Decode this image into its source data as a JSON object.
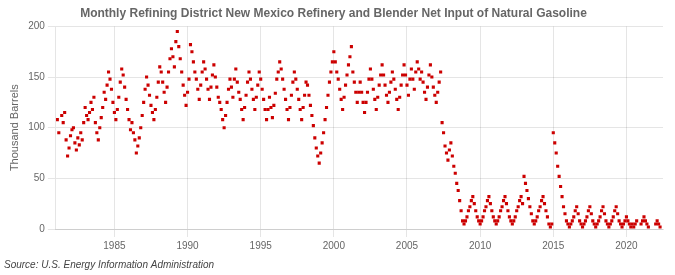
{
  "chart_data": {
    "type": "scatter",
    "title": "Monthly Refining District New Mexico Refinery and Blender Net Input of Natural Gasoline",
    "ylabel": "Thousand Barrels",
    "annotation": "Source: U.S. Energy Information Administration",
    "color": "#cc0000",
    "marker": "square",
    "grid": true,
    "xlim": [
      1981.0,
      2022.5
    ],
    "ylim": [
      0,
      200
    ],
    "xticks": [
      1985,
      1990,
      1995,
      2000,
      2005,
      2010,
      2015,
      2020
    ],
    "yticks": [
      0,
      50,
      100,
      150,
      200
    ],
    "x": [
      1981.1,
      1981.2,
      1981.4,
      1981.5,
      1981.6,
      1981.7,
      1981.8,
      1981.9,
      1982.0,
      1982.1,
      1982.2,
      1982.3,
      1982.4,
      1982.5,
      1982.6,
      1982.7,
      1982.8,
      1982.9,
      1983.0,
      1983.1,
      1983.2,
      1983.3,
      1983.4,
      1983.5,
      1983.6,
      1983.7,
      1983.8,
      1983.9,
      1984.0,
      1984.1,
      1984.2,
      1984.3,
      1984.4,
      1984.5,
      1984.6,
      1984.7,
      1984.8,
      1984.9,
      1985.0,
      1985.1,
      1985.2,
      1985.3,
      1985.4,
      1985.5,
      1985.6,
      1985.7,
      1985.8,
      1985.9,
      1986.0,
      1986.1,
      1986.2,
      1986.3,
      1986.4,
      1986.5,
      1986.6,
      1986.7,
      1986.8,
      1986.9,
      1987.0,
      1987.1,
      1987.2,
      1987.3,
      1987.4,
      1987.5,
      1987.6,
      1987.7,
      1987.8,
      1987.9,
      1988.0,
      1988.1,
      1988.2,
      1988.3,
      1988.4,
      1988.5,
      1988.6,
      1988.7,
      1988.8,
      1988.9,
      1989.0,
      1989.1,
      1989.2,
      1989.3,
      1989.4,
      1989.5,
      1989.6,
      1989.7,
      1989.8,
      1989.9,
      1990.0,
      1990.1,
      1990.2,
      1990.3,
      1990.4,
      1990.5,
      1990.6,
      1990.7,
      1990.8,
      1990.9,
      1991.0,
      1991.1,
      1991.2,
      1991.3,
      1991.4,
      1991.5,
      1991.6,
      1991.7,
      1991.8,
      1991.9,
      1992.0,
      1992.1,
      1992.2,
      1992.3,
      1992.4,
      1992.5,
      1992.6,
      1992.7,
      1992.8,
      1992.9,
      1993.0,
      1993.1,
      1993.2,
      1993.3,
      1993.4,
      1993.5,
      1993.6,
      1993.7,
      1993.8,
      1993.9,
      1994.0,
      1994.1,
      1994.2,
      1994.3,
      1994.4,
      1994.5,
      1994.6,
      1994.7,
      1994.8,
      1994.9,
      1995.0,
      1995.1,
      1995.2,
      1995.3,
      1995.4,
      1995.5,
      1995.6,
      1995.7,
      1995.8,
      1995.9,
      1996.0,
      1996.1,
      1996.2,
      1996.3,
      1996.4,
      1996.5,
      1996.6,
      1996.7,
      1996.8,
      1996.9,
      1997.0,
      1997.1,
      1997.2,
      1997.3,
      1997.4,
      1997.5,
      1997.6,
      1997.7,
      1997.8,
      1997.9,
      1998.0,
      1998.1,
      1998.2,
      1998.3,
      1998.4,
      1998.5,
      1998.6,
      1998.7,
      1998.8,
      1998.9,
      1999.0,
      1999.1,
      1999.2,
      1999.3,
      1999.4,
      1999.5,
      1999.6,
      1999.7,
      1999.8,
      1999.9,
      2000.0,
      2000.1,
      2000.2,
      2000.3,
      2000.4,
      2000.5,
      2000.6,
      2000.7,
      2000.8,
      2000.9,
      2001.0,
      2001.1,
      2001.2,
      2001.3,
      2001.4,
      2001.5,
      2001.6,
      2001.7,
      2001.8,
      2001.9,
      2002.0,
      2002.1,
      2002.2,
      2002.3,
      2002.4,
      2002.5,
      2002.6,
      2002.7,
      2002.8,
      2002.9,
      2003.0,
      2003.1,
      2003.2,
      2003.3,
      2003.4,
      2003.5,
      2003.6,
      2003.7,
      2003.8,
      2003.9,
      2004.0,
      2004.1,
      2004.2,
      2004.3,
      2004.4,
      2004.5,
      2004.6,
      2004.7,
      2004.8,
      2004.9,
      2005.0,
      2005.1,
      2005.2,
      2005.3,
      2005.4,
      2005.5,
      2005.6,
      2005.7,
      2005.8,
      2005.9,
      2006.0,
      2006.1,
      2006.2,
      2006.3,
      2006.4,
      2006.5,
      2006.6,
      2006.7,
      2006.8,
      2006.9,
      2007.0,
      2007.1,
      2007.2,
      2007.3,
      2007.4,
      2007.5,
      2007.6,
      2007.7,
      2007.8,
      2007.9,
      2008.0,
      2008.1,
      2008.2,
      2008.3,
      2008.4,
      2008.5,
      2008.6,
      2008.7,
      2008.8,
      2008.9,
      2009.0,
      2009.1,
      2009.2,
      2009.3,
      2009.4,
      2009.5,
      2009.6,
      2009.7,
      2009.8,
      2009.9,
      2010.0,
      2010.1,
      2010.2,
      2010.3,
      2010.4,
      2010.5,
      2010.6,
      2010.7,
      2010.8,
      2010.9,
      2011.0,
      2011.1,
      2011.2,
      2011.3,
      2011.4,
      2011.5,
      2011.6,
      2011.7,
      2011.8,
      2011.9,
      2012.0,
      2012.1,
      2012.2,
      2012.3,
      2012.4,
      2012.5,
      2012.6,
      2012.7,
      2012.8,
      2012.9,
      2013.0,
      2013.1,
      2013.2,
      2013.3,
      2013.4,
      2013.5,
      2013.6,
      2013.7,
      2013.8,
      2013.9,
      2014.0,
      2014.1,
      2014.2,
      2014.3,
      2014.4,
      2014.5,
      2014.6,
      2014.7,
      2014.8,
      2014.9,
      2015.0,
      2015.1,
      2015.2,
      2015.3,
      2015.4,
      2015.5,
      2015.6,
      2015.7,
      2015.8,
      2015.9,
      2016.0,
      2016.1,
      2016.2,
      2016.3,
      2016.4,
      2016.5,
      2016.6,
      2016.7,
      2016.8,
      2016.9,
      2017.0,
      2017.1,
      2017.2,
      2017.3,
      2017.4,
      2017.5,
      2017.6,
      2017.7,
      2017.8,
      2017.9,
      2018.0,
      2018.1,
      2018.2,
      2018.3,
      2018.4,
      2018.5,
      2018.6,
      2018.7,
      2018.8,
      2018.9,
      2019.0,
      2019.1,
      2019.2,
      2019.3,
      2019.4,
      2019.5,
      2019.6,
      2019.7,
      2019.8,
      2019.9,
      2020.0,
      2020.1,
      2020.2,
      2020.3,
      2020.4,
      2020.5,
      2020.6,
      2020.7,
      2021.0,
      2021.1,
      2021.2,
      2021.3,
      2021.4,
      2021.5,
      2022.0,
      2022.1,
      2022.2,
      2022.3
    ],
    "values": [
      108,
      95,
      112,
      105,
      115,
      88,
      72,
      80,
      92,
      98,
      100,
      85,
      78,
      90,
      83,
      95,
      88,
      105,
      120,
      112,
      108,
      115,
      125,
      118,
      130,
      105,
      95,
      88,
      100,
      110,
      120,
      135,
      128,
      142,
      155,
      148,
      138,
      125,
      115,
      108,
      118,
      130,
      145,
      158,
      152,
      140,
      128,
      118,
      108,
      98,
      105,
      95,
      88,
      75,
      82,
      90,
      100,
      112,
      125,
      138,
      150,
      142,
      132,
      122,
      115,
      108,
      118,
      130,
      145,
      160,
      155,
      145,
      135,
      125,
      140,
      155,
      168,
      178,
      170,
      160,
      185,
      195,
      180,
      168,
      155,
      142,
      132,
      122,
      135,
      148,
      182,
      175,
      165,
      155,
      148,
      138,
      128,
      142,
      155,
      165,
      158,
      148,
      138,
      128,
      140,
      152,
      162,
      150,
      140,
      130,
      125,
      118,
      108,
      100,
      112,
      125,
      138,
      148,
      140,
      130,
      148,
      158,
      145,
      135,
      128,
      118,
      108,
      120,
      132,
      145,
      155,
      148,
      138,
      128,
      118,
      130,
      142,
      155,
      148,
      138,
      128,
      118,
      108,
      118,
      130,
      120,
      110,
      122,
      134,
      148,
      155,
      165,
      158,
      148,
      138,
      128,
      118,
      108,
      120,
      132,
      145,
      155,
      148,
      138,
      128,
      118,
      108,
      120,
      132,
      145,
      142,
      132,
      122,
      112,
      102,
      90,
      80,
      72,
      65,
      75,
      85,
      95,
      108,
      120,
      132,
      145,
      155,
      165,
      175,
      165,
      155,
      148,
      138,
      128,
      118,
      130,
      142,
      152,
      162,
      170,
      180,
      155,
      145,
      135,
      125,
      135,
      145,
      135,
      125,
      115,
      125,
      135,
      148,
      158,
      148,
      138,
      128,
      118,
      130,
      142,
      152,
      162,
      152,
      142,
      132,
      125,
      135,
      145,
      155,
      148,
      138,
      128,
      118,
      130,
      142,
      152,
      162,
      152,
      142,
      132,
      148,
      158,
      148,
      138,
      155,
      165,
      158,
      148,
      155,
      145,
      135,
      128,
      140,
      152,
      162,
      150,
      140,
      132,
      125,
      135,
      145,
      155,
      105,
      95,
      82,
      75,
      68,
      78,
      85,
      72,
      62,
      55,
      45,
      38,
      28,
      18,
      8,
      5,
      8,
      12,
      18,
      22,
      28,
      32,
      25,
      18,
      12,
      8,
      5,
      8,
      12,
      18,
      22,
      28,
      32,
      25,
      18,
      12,
      8,
      5,
      8,
      12,
      18,
      22,
      28,
      32,
      25,
      18,
      12,
      8,
      5,
      8,
      12,
      18,
      22,
      28,
      32,
      25,
      52,
      45,
      38,
      30,
      22,
      15,
      8,
      5,
      8,
      12,
      18,
      22,
      28,
      32,
      25,
      18,
      12,
      5,
      2,
      5,
      95,
      85,
      75,
      62,
      52,
      42,
      32,
      22,
      15,
      8,
      5,
      2,
      5,
      8,
      12,
      18,
      22,
      15,
      8,
      5,
      2,
      5,
      8,
      12,
      18,
      22,
      15,
      8,
      5,
      2,
      5,
      8,
      12,
      18,
      22,
      15,
      8,
      5,
      2,
      5,
      8,
      12,
      18,
      22,
      15,
      8,
      5,
      2,
      5,
      8,
      12,
      8,
      5,
      2,
      5,
      2,
      5,
      8,
      5,
      8,
      12,
      8,
      5,
      2,
      5,
      8,
      5,
      2
    ]
  }
}
